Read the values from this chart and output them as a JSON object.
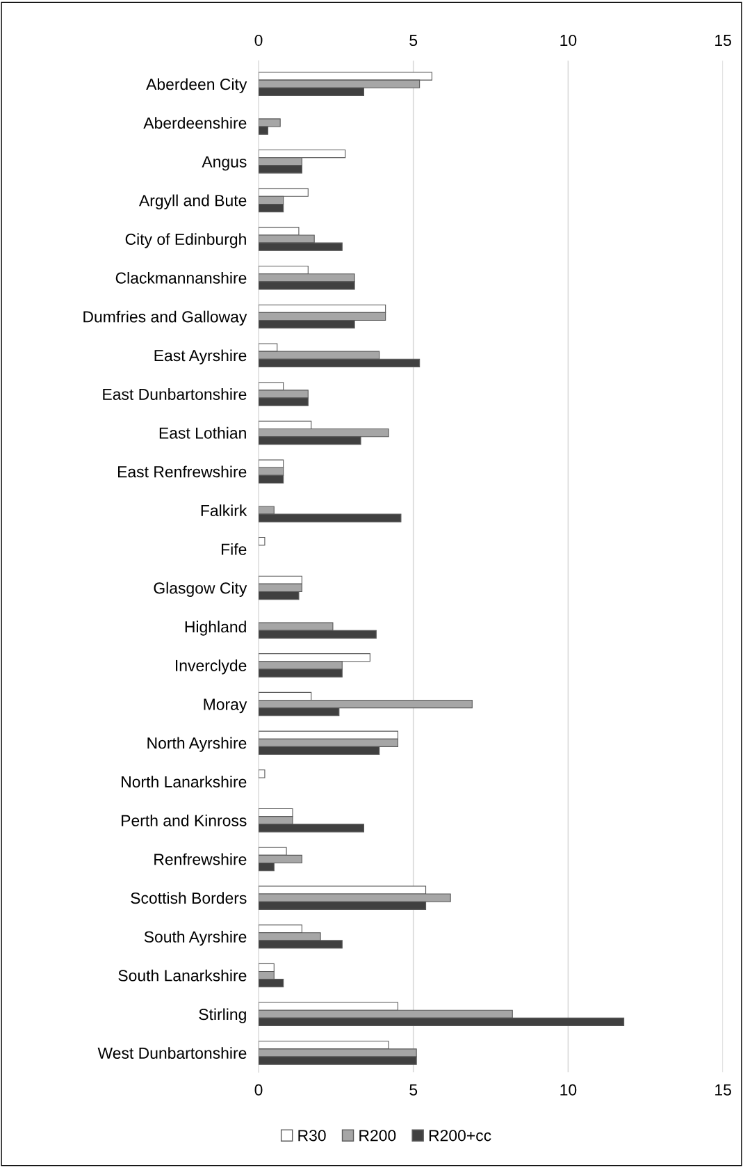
{
  "chart_data": {
    "type": "bar",
    "orientation": "horizontal",
    "categories": [
      "Aberdeen City",
      "Aberdeenshire",
      "Angus",
      "Argyll and Bute",
      "City of Edinburgh",
      "Clackmannanshire",
      "Dumfries and Galloway",
      "East Ayrshire",
      "East Dunbartonshire",
      "East Lothian",
      "East Renfrewshire",
      "Falkirk",
      "Fife",
      "Glasgow City",
      "Highland",
      "Inverclyde",
      "Moray",
      "North Ayrshire",
      "North Lanarkshire",
      "Perth and Kinross",
      "Renfrewshire",
      "Scottish Borders",
      "South Ayrshire",
      "South Lanarkshire",
      "Stirling",
      "West Dunbartonshire"
    ],
    "series": [
      {
        "name": "R30",
        "color": "#ffffff",
        "values": [
          5.6,
          null,
          2.8,
          1.6,
          1.3,
          1.6,
          4.1,
          0.6,
          0.8,
          1.7,
          0.8,
          null,
          0.2,
          1.4,
          null,
          3.6,
          1.7,
          4.5,
          0.2,
          1.1,
          0.9,
          5.4,
          1.4,
          0.5,
          4.5,
          4.2
        ]
      },
      {
        "name": "R200",
        "color": "#a6a6a6",
        "values": [
          5.2,
          0.7,
          1.4,
          0.8,
          1.8,
          3.1,
          4.1,
          3.9,
          1.6,
          4.2,
          0.8,
          0.5,
          null,
          1.4,
          2.4,
          2.7,
          6.9,
          4.5,
          null,
          1.1,
          1.4,
          6.2,
          2.0,
          0.5,
          8.2,
          5.1
        ]
      },
      {
        "name": "R200+cc",
        "color": "#404040",
        "values": [
          3.4,
          0.3,
          1.4,
          0.8,
          2.7,
          3.1,
          3.1,
          5.2,
          1.6,
          3.3,
          0.8,
          4.6,
          null,
          1.3,
          3.8,
          2.7,
          2.6,
          3.9,
          null,
          3.4,
          0.5,
          5.4,
          2.7,
          0.8,
          11.8,
          5.1
        ]
      }
    ],
    "xlim": [
      0,
      15
    ],
    "xticks": [
      0,
      5,
      10,
      15
    ],
    "x2lim": [
      0,
      15
    ],
    "x2ticks": [
      0,
      5,
      10,
      15
    ],
    "grid": "x",
    "legend": "bottom"
  }
}
